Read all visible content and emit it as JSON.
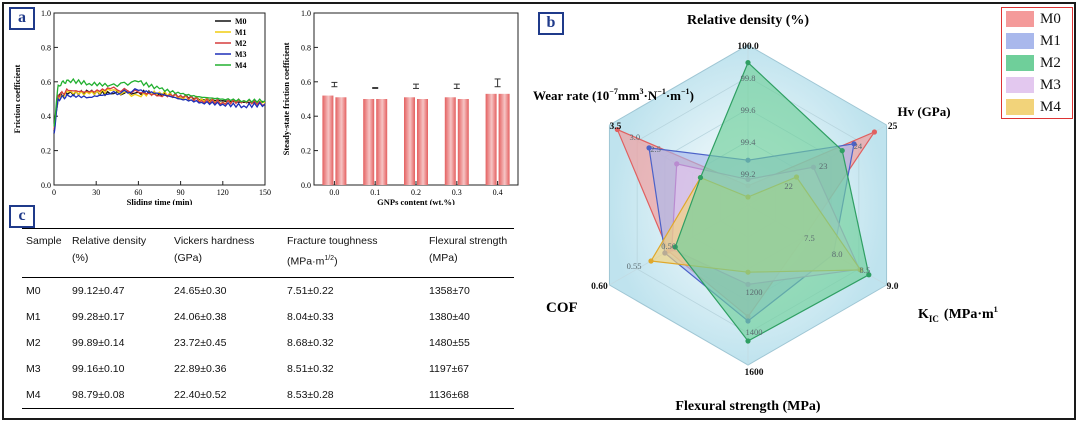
{
  "panel_labels": {
    "a": "a",
    "b": "b",
    "c": "c"
  },
  "chart_data": [
    {
      "type": "line",
      "xlabel": "Sliding time (min)",
      "ylabel": "Friction coefficient",
      "xlim": [
        0,
        150
      ],
      "ylim": [
        0,
        1.0
      ],
      "xticks": [
        "0",
        "30",
        "60",
        "90",
        "120",
        "150"
      ],
      "yticks": [
        "0.0",
        "0.2",
        "0.4",
        "0.6",
        "0.8",
        "1.0"
      ],
      "legend_position": "top-right",
      "series": [
        {
          "name": "M0",
          "color": "#111111",
          "values": [
            [
              0,
              0.3
            ],
            [
              3,
              0.52
            ],
            [
              10,
              0.53
            ],
            [
              25,
              0.54
            ],
            [
              40,
              0.53
            ],
            [
              60,
              0.54
            ],
            [
              75,
              0.53
            ],
            [
              90,
              0.52
            ],
            [
              105,
              0.5
            ],
            [
              120,
              0.49
            ],
            [
              135,
              0.48
            ],
            [
              150,
              0.48
            ]
          ]
        },
        {
          "name": "M1",
          "color": "#f0cc10",
          "values": [
            [
              0,
              0.33
            ],
            [
              3,
              0.5
            ],
            [
              10,
              0.54
            ],
            [
              25,
              0.53
            ],
            [
              40,
              0.55
            ],
            [
              60,
              0.52
            ],
            [
              75,
              0.54
            ],
            [
              90,
              0.51
            ],
            [
              105,
              0.5
            ],
            [
              120,
              0.48
            ],
            [
              135,
              0.49
            ],
            [
              150,
              0.48
            ]
          ]
        },
        {
          "name": "M2",
          "color": "#d63c3c",
          "values": [
            [
              0,
              0.32
            ],
            [
              3,
              0.52
            ],
            [
              10,
              0.55
            ],
            [
              25,
              0.54
            ],
            [
              40,
              0.56
            ],
            [
              60,
              0.54
            ],
            [
              75,
              0.52
            ],
            [
              90,
              0.52
            ],
            [
              105,
              0.49
            ],
            [
              120,
              0.48
            ],
            [
              135,
              0.49
            ],
            [
              150,
              0.47
            ]
          ]
        },
        {
          "name": "M3",
          "color": "#1d2fb8",
          "values": [
            [
              0,
              0.3
            ],
            [
              3,
              0.5
            ],
            [
              10,
              0.52
            ],
            [
              25,
              0.51
            ],
            [
              40,
              0.53
            ],
            [
              60,
              0.55
            ],
            [
              75,
              0.53
            ],
            [
              90,
              0.5
            ],
            [
              105,
              0.48
            ],
            [
              120,
              0.47
            ],
            [
              135,
              0.46
            ],
            [
              150,
              0.47
            ]
          ]
        },
        {
          "name": "M4",
          "color": "#22b030",
          "values": [
            [
              0,
              0.34
            ],
            [
              3,
              0.58
            ],
            [
              10,
              0.61
            ],
            [
              25,
              0.59
            ],
            [
              40,
              0.58
            ],
            [
              60,
              0.6
            ],
            [
              75,
              0.56
            ],
            [
              90,
              0.53
            ],
            [
              105,
              0.51
            ],
            [
              120,
              0.5
            ],
            [
              135,
              0.49
            ],
            [
              150,
              0.49
            ]
          ]
        }
      ]
    },
    {
      "type": "bar",
      "xlabel": "GNPs content (wt.%)",
      "ylabel": "Steady-state friction coefficient",
      "ylim": [
        0,
        1.0
      ],
      "yticks": [
        "0.0",
        "0.2",
        "0.4",
        "0.6",
        "0.8",
        "1.0"
      ],
      "categories": [
        "0.0",
        "0.1",
        "0.2",
        "0.3",
        "0.4"
      ],
      "values": [
        [
          0.52,
          0.51
        ],
        [
          0.5,
          0.5
        ],
        [
          0.51,
          0.5
        ],
        [
          0.51,
          0.5
        ],
        [
          0.53,
          0.53
        ]
      ],
      "errors": [
        0.03,
        0.02,
        0.03,
        0.03,
        0.04
      ],
      "bar_color": "#e46060"
    },
    {
      "type": "radar",
      "axes": [
        {
          "label": "Relative density (%)",
          "ticks": [
            "99.2",
            "99.4",
            "99.6",
            "99.8",
            "100.0"
          ]
        },
        {
          "label": "Hv (GPa)",
          "ticks": [
            "22",
            "23",
            "24",
            "25"
          ]
        },
        {
          "label": "K_IC (MPa·m^1/2)",
          "ticks": [
            "7.5",
            "8.0",
            "8.5",
            "9.0"
          ]
        },
        {
          "label": "Flexural strength (MPa)",
          "ticks": [
            "1200",
            "1400",
            "1600"
          ]
        },
        {
          "label": "COF",
          "ticks": [
            "0.50",
            "0.55",
            "0.60"
          ]
        },
        {
          "label": "Wear rate (10^-7 mm^3·N^-1·m^-1)",
          "ticks": [
            "2.5",
            "3.0",
            "3.5"
          ]
        }
      ],
      "series": [
        {
          "name": "M0",
          "color": "#f49a9a",
          "line": "#e06060",
          "values": [
            99.12,
            24.65,
            7.51,
            1358,
            0.515,
            3.3
          ]
        },
        {
          "name": "M1",
          "color": "#a9b8ec",
          "line": "#4c62c8",
          "values": [
            99.28,
            24.06,
            8.04,
            1380,
            0.52,
            2.5
          ]
        },
        {
          "name": "M2",
          "color": "#6fcf9a",
          "line": "#2f9f63",
          "values": [
            99.89,
            23.72,
            8.68,
            1480,
            0.505,
            1.2
          ]
        },
        {
          "name": "M3",
          "color": "#e3c8ef",
          "line": "#b98bd0",
          "values": [
            99.16,
            22.89,
            8.51,
            1197,
            0.51,
            1.8
          ]
        },
        {
          "name": "M4",
          "color": "#f2d37a",
          "line": "#e0a82a",
          "values": [
            98.79,
            22.4,
            8.53,
            1136,
            0.54,
            1.2
          ]
        }
      ]
    }
  ],
  "axis_texts": {
    "hv_label": "Hv (GPa)",
    "kic_main": "K",
    "kic_sub": "IC",
    "kic_unit": "(MPa·m",
    "kic_exp": "1/2",
    "kic_close": ")",
    "cof_label": "COF",
    "flex_label": "Flexural strength (MPa)",
    "rel_label": "Relative density (%)",
    "wear_main": "Wear rate (10",
    "wear_e1": "−7",
    "wear_m2": "mm",
    "wear_e2": "3",
    "wear_m3": "·N",
    "wear_e3": "−1",
    "wear_m4": "·m",
    "wear_e4": "−1",
    "wear_close": ")"
  },
  "table": {
    "headers": [
      {
        "line1": "Sample",
        "line2": ""
      },
      {
        "line1": "Relative density",
        "line2": "(%)"
      },
      {
        "line1": "Vickers hardness",
        "line2": "(GPa)"
      },
      {
        "line1": "Fracture toughness",
        "line2": "(MPa·m",
        "sup": "1/2",
        "close": ")"
      },
      {
        "line1": "Flexural strength",
        "line2": "(MPa)"
      }
    ],
    "rows": [
      [
        "M0",
        "99.12±0.47",
        "24.65±0.30",
        "7.51±0.22",
        "1358±70"
      ],
      [
        "M1",
        "99.28±0.17",
        "24.06±0.38",
        "8.04±0.33",
        "1380±40"
      ],
      [
        "M2",
        "99.89±0.14",
        "23.72±0.45",
        "8.68±0.32",
        "1480±55"
      ],
      [
        "M3",
        "99.16±0.10",
        "22.89±0.36",
        "8.51±0.32",
        "1197±67"
      ],
      [
        "M4",
        "98.79±0.08",
        "22.40±0.52",
        "8.53±0.28",
        "1136±68"
      ]
    ]
  }
}
